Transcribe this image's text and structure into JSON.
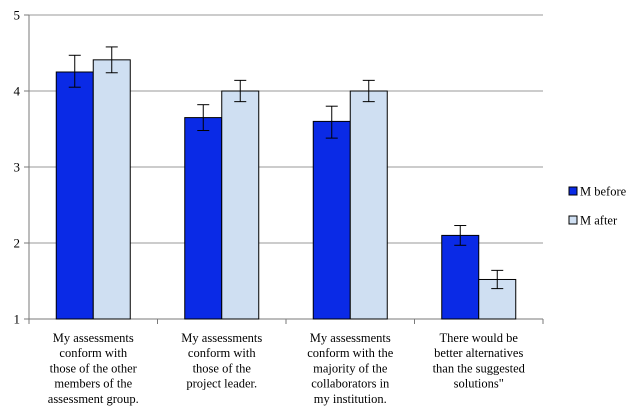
{
  "chart_data": {
    "type": "bar",
    "title": "",
    "xlabel": "",
    "ylabel": "",
    "ylim": [
      1,
      5
    ],
    "yticks": [
      1,
      2,
      3,
      4,
      5
    ],
    "grid": true,
    "legend_position": "right",
    "categories": [
      [
        "My assessments",
        "conform with",
        "those of the other",
        "members of the",
        "assessment group."
      ],
      [
        "My assessments",
        "conform with",
        "those of the",
        "project leader."
      ],
      [
        "My assessments",
        "conform with the",
        "majority of the",
        "collaborators in",
        "my institution."
      ],
      [
        "There would be",
        "better alternatives",
        "than the suggested",
        "solutions\""
      ]
    ],
    "series": [
      {
        "name": "M before",
        "color": "#0a2ae6",
        "values": [
          4.25,
          3.65,
          3.6,
          2.1
        ],
        "error_low": [
          4.05,
          3.48,
          3.38,
          1.97
        ],
        "error_high": [
          4.47,
          3.82,
          3.8,
          2.23
        ]
      },
      {
        "name": "M after",
        "color": "#cfdff2",
        "values": [
          4.41,
          4.0,
          4.0,
          1.52
        ],
        "error_low": [
          4.24,
          3.86,
          3.86,
          1.4
        ],
        "error_high": [
          4.58,
          4.14,
          4.14,
          1.64
        ]
      }
    ]
  }
}
